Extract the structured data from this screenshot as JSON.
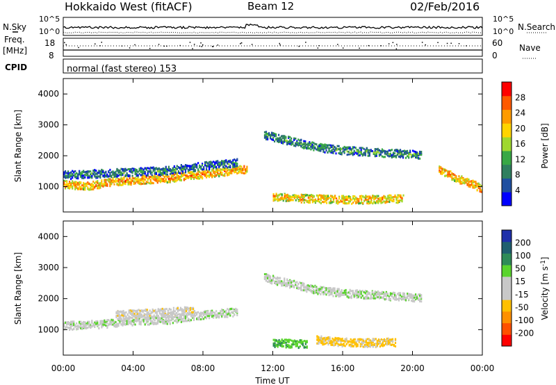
{
  "header": {
    "station": "Hokkaido West (fitACF)",
    "beam": "Beam 12",
    "date": "02/Feb/2016"
  },
  "panel_labels": {
    "nsky": "N.Sky",
    "nsearch": "N.Search",
    "freq": "Freq.",
    "freq_unit": "[MHz]",
    "nave": "Nave",
    "cpid": "CPID",
    "cpid_value": "normal (fast stereo) 153"
  },
  "noise_axis": {
    "left": [
      "10^5",
      "10^0"
    ],
    "right": [
      "10^5",
      "10^0"
    ]
  },
  "freq_axis": {
    "left": [
      "18",
      "8"
    ],
    "right": [
      "60",
      "0"
    ]
  },
  "colors": {
    "power": [
      "#0000ff",
      "#1f4fa0",
      "#2f7f5f",
      "#38a845",
      "#9fd82f",
      "#ffd400",
      "#ff9b00",
      "#ff5a00",
      "#ff0000"
    ],
    "velocity": [
      "#ff0000",
      "#ff5000",
      "#ff9000",
      "#ffc000",
      "#c8c8c8",
      "#c8c8c8",
      "#5ad42d",
      "#2e8b57",
      "#1f5f6f",
      "#1e2faa"
    ]
  },
  "chart_data": [
    {
      "type": "heatmap",
      "name": "power",
      "title": "",
      "xlabel": "",
      "ylabel": "Slant Range [km]",
      "xlim": [
        0,
        24
      ],
      "ylim": [
        180,
        4500
      ],
      "x_ticks": [
        "00:00",
        "04:00",
        "08:00",
        "12:00",
        "16:00",
        "20:00",
        "00:00"
      ],
      "y_ticks": [
        1000,
        2000,
        3000,
        4000
      ],
      "colorbar": {
        "label": "Power [dB]",
        "ticks": [
          4,
          8,
          12,
          16,
          20,
          24,
          28
        ],
        "range": [
          0,
          30
        ]
      },
      "echo_regions": [
        {
          "x": [
            0,
            1.5,
            3,
            4.5,
            6,
            7.5,
            9,
            10.5
          ],
          "y": [
            1100,
            1050,
            1200,
            1250,
            1300,
            1400,
            1500,
            1600
          ],
          "level": 26
        },
        {
          "x": [
            0,
            2,
            4,
            6,
            8,
            10
          ],
          "y": [
            1400,
            1450,
            1500,
            1550,
            1700,
            1800
          ],
          "level": 10
        },
        {
          "x": [
            11.5,
            13,
            14.5,
            16,
            17.5,
            19,
            20.5
          ],
          "y": [
            2700,
            2500,
            2300,
            2200,
            2150,
            2100,
            2050
          ],
          "level": 12
        },
        {
          "x": [
            12,
            13.5,
            15,
            16.5,
            18,
            19.5
          ],
          "y": [
            700,
            650,
            620,
            600,
            620,
            640
          ],
          "level": 24
        },
        {
          "x": [
            21.5,
            22.5,
            23.5,
            24
          ],
          "y": [
            1600,
            1300,
            1100,
            900
          ],
          "level": 26
        }
      ]
    },
    {
      "type": "heatmap",
      "name": "velocity",
      "title": "",
      "xlabel": "Time UT",
      "ylabel": "Slant Range [km]",
      "xlim": [
        0,
        24
      ],
      "ylim": [
        180,
        4500
      ],
      "x_ticks": [
        "00:00",
        "04:00",
        "08:00",
        "12:00",
        "16:00",
        "20:00",
        "00:00"
      ],
      "y_ticks": [
        1000,
        2000,
        3000,
        4000
      ],
      "colorbar": {
        "label": "Velocity [m s-1]",
        "ticks": [
          200,
          100,
          50,
          15,
          -15,
          -50,
          -100,
          -200
        ]
      },
      "echo_regions": [
        {
          "x": [
            0,
            2,
            4,
            6,
            8,
            10
          ],
          "y": [
            1150,
            1200,
            1300,
            1350,
            1500,
            1600
          ],
          "level": 0
        },
        {
          "x": [
            11.5,
            13,
            14.5,
            16,
            17.5,
            19,
            20.5
          ],
          "y": [
            2700,
            2500,
            2300,
            2200,
            2150,
            2100,
            2050
          ],
          "level": 0
        },
        {
          "x": [
            12,
            13,
            14
          ],
          "y": [
            600,
            580,
            560
          ],
          "level": 40
        },
        {
          "x": [
            14.5,
            16,
            17.5,
            19
          ],
          "y": [
            700,
            620,
            600,
            620
          ],
          "level": -60
        },
        {
          "x": [
            3,
            4.5,
            6,
            7.5
          ],
          "y": [
            1500,
            1550,
            1600,
            1650
          ],
          "level": -30
        }
      ]
    }
  ]
}
